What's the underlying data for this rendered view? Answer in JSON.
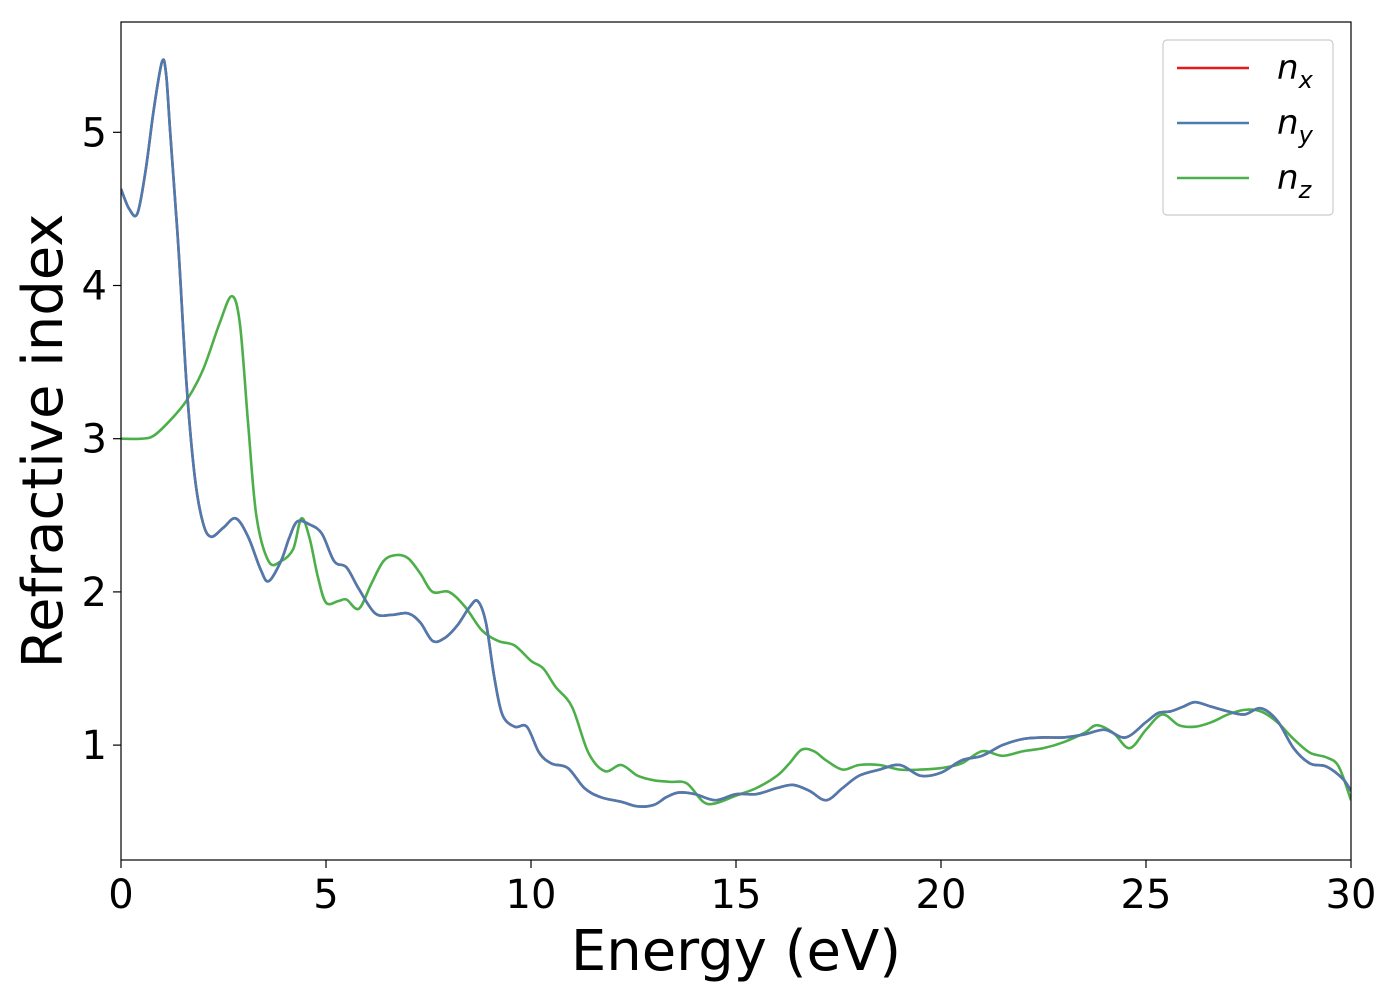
{
  "chart_data": {
    "type": "line",
    "xlabel": "Energy (eV)",
    "ylabel": "Refractive index",
    "xlim": [
      0,
      30
    ],
    "ylim": [
      0.25,
      5.72
    ],
    "xticks": [
      0,
      5,
      10,
      15,
      20,
      25,
      30
    ],
    "yticks": [
      1,
      2,
      3,
      4,
      5
    ],
    "grid": false,
    "legend_position": "top-right",
    "series": [
      {
        "name": "n_x",
        "label_base": "n",
        "label_sub": "x",
        "color": "#e41a1c",
        "x": [
          0,
          0.2,
          0.4,
          0.6,
          0.8,
          1.0,
          1.1,
          1.2,
          1.4,
          1.6,
          1.8,
          2.0,
          2.2,
          2.5,
          2.8,
          3.1,
          3.4,
          3.6,
          3.9,
          4.1,
          4.3,
          4.6,
          4.9,
          5.2,
          5.5,
          5.8,
          6.2,
          6.6,
          7.0,
          7.3,
          7.6,
          7.9,
          8.2,
          8.5,
          8.7,
          8.9,
          9.1,
          9.3,
          9.6,
          9.9,
          10.2,
          10.5,
          10.9,
          11.3,
          11.7,
          12.2,
          12.6,
          13.0,
          13.3,
          13.6,
          14.0,
          14.5,
          15.0,
          15.5,
          16.0,
          16.4,
          16.8,
          17.2,
          17.6,
          18.0,
          18.5,
          19.0,
          19.5,
          20.0,
          20.5,
          21.0,
          21.5,
          22.0,
          22.5,
          23.0,
          23.5,
          24.0,
          24.5,
          25.0,
          25.3,
          25.6,
          25.9,
          26.2,
          26.6,
          27.0,
          27.4,
          27.8,
          28.2,
          28.6,
          29.0,
          29.4,
          29.8,
          30.0
        ],
        "y": [
          4.63,
          4.5,
          4.47,
          4.75,
          5.15,
          5.46,
          5.38,
          5.0,
          4.25,
          3.35,
          2.75,
          2.45,
          2.36,
          2.42,
          2.48,
          2.36,
          2.15,
          2.07,
          2.2,
          2.35,
          2.46,
          2.44,
          2.38,
          2.2,
          2.16,
          2.02,
          1.86,
          1.85,
          1.86,
          1.8,
          1.68,
          1.7,
          1.78,
          1.9,
          1.94,
          1.8,
          1.45,
          1.2,
          1.12,
          1.12,
          0.95,
          0.88,
          0.85,
          0.72,
          0.66,
          0.63,
          0.6,
          0.61,
          0.66,
          0.69,
          0.68,
          0.64,
          0.68,
          0.68,
          0.72,
          0.74,
          0.7,
          0.64,
          0.72,
          0.8,
          0.84,
          0.87,
          0.8,
          0.82,
          0.9,
          0.93,
          1.0,
          1.04,
          1.05,
          1.05,
          1.07,
          1.1,
          1.05,
          1.15,
          1.21,
          1.22,
          1.25,
          1.28,
          1.25,
          1.22,
          1.2,
          1.24,
          1.16,
          0.98,
          0.88,
          0.86,
          0.78,
          0.7
        ]
      },
      {
        "name": "n_y",
        "label_base": "n",
        "label_sub": "y",
        "color": "#4c7bb0",
        "x": [
          0,
          0.2,
          0.4,
          0.6,
          0.8,
          1.0,
          1.1,
          1.2,
          1.4,
          1.6,
          1.8,
          2.0,
          2.2,
          2.5,
          2.8,
          3.1,
          3.4,
          3.6,
          3.9,
          4.1,
          4.3,
          4.6,
          4.9,
          5.2,
          5.5,
          5.8,
          6.2,
          6.6,
          7.0,
          7.3,
          7.6,
          7.9,
          8.2,
          8.5,
          8.7,
          8.9,
          9.1,
          9.3,
          9.6,
          9.9,
          10.2,
          10.5,
          10.9,
          11.3,
          11.7,
          12.2,
          12.6,
          13.0,
          13.3,
          13.6,
          14.0,
          14.5,
          15.0,
          15.5,
          16.0,
          16.4,
          16.8,
          17.2,
          17.6,
          18.0,
          18.5,
          19.0,
          19.5,
          20.0,
          20.5,
          21.0,
          21.5,
          22.0,
          22.5,
          23.0,
          23.5,
          24.0,
          24.5,
          25.0,
          25.3,
          25.6,
          25.9,
          26.2,
          26.6,
          27.0,
          27.4,
          27.8,
          28.2,
          28.6,
          29.0,
          29.4,
          29.8,
          30.0
        ],
        "y": [
          4.63,
          4.5,
          4.47,
          4.75,
          5.15,
          5.46,
          5.38,
          5.0,
          4.25,
          3.35,
          2.75,
          2.45,
          2.36,
          2.42,
          2.48,
          2.36,
          2.15,
          2.07,
          2.2,
          2.35,
          2.46,
          2.44,
          2.38,
          2.2,
          2.16,
          2.02,
          1.86,
          1.85,
          1.86,
          1.8,
          1.68,
          1.7,
          1.78,
          1.9,
          1.94,
          1.8,
          1.45,
          1.2,
          1.12,
          1.12,
          0.95,
          0.88,
          0.85,
          0.72,
          0.66,
          0.63,
          0.6,
          0.61,
          0.66,
          0.69,
          0.68,
          0.64,
          0.68,
          0.68,
          0.72,
          0.74,
          0.7,
          0.64,
          0.72,
          0.8,
          0.84,
          0.87,
          0.8,
          0.82,
          0.9,
          0.93,
          1.0,
          1.04,
          1.05,
          1.05,
          1.07,
          1.1,
          1.05,
          1.15,
          1.21,
          1.22,
          1.25,
          1.28,
          1.25,
          1.22,
          1.2,
          1.24,
          1.16,
          0.98,
          0.88,
          0.86,
          0.78,
          0.7
        ]
      },
      {
        "name": "n_z",
        "label_base": "n",
        "label_sub": "z",
        "color": "#4daf4a",
        "x": [
          0,
          0.5,
          0.8,
          1.2,
          1.6,
          2.0,
          2.4,
          2.7,
          2.9,
          3.1,
          3.3,
          3.6,
          3.9,
          4.2,
          4.4,
          4.6,
          4.8,
          5.0,
          5.3,
          5.5,
          5.8,
          6.1,
          6.4,
          6.7,
          7.0,
          7.3,
          7.6,
          8.0,
          8.4,
          8.8,
          9.2,
          9.6,
          10.0,
          10.3,
          10.6,
          11.0,
          11.4,
          11.8,
          12.2,
          12.6,
          13.0,
          13.4,
          13.8,
          14.2,
          14.5,
          15.0,
          15.5,
          16.0,
          16.3,
          16.6,
          16.9,
          17.2,
          17.6,
          18.0,
          18.5,
          19.0,
          19.5,
          20.0,
          20.5,
          21.0,
          21.5,
          22.0,
          22.5,
          23.0,
          23.5,
          23.8,
          24.2,
          24.6,
          25.0,
          25.4,
          25.8,
          26.2,
          26.6,
          27.0,
          27.4,
          27.8,
          28.2,
          28.6,
          29.0,
          29.4,
          29.7,
          30.0
        ],
        "y": [
          3.0,
          3.0,
          3.02,
          3.12,
          3.25,
          3.45,
          3.75,
          3.93,
          3.75,
          3.1,
          2.5,
          2.2,
          2.2,
          2.28,
          2.48,
          2.35,
          2.1,
          1.93,
          1.94,
          1.95,
          1.89,
          2.05,
          2.2,
          2.24,
          2.22,
          2.12,
          2.0,
          2.0,
          1.9,
          1.75,
          1.68,
          1.65,
          1.55,
          1.5,
          1.38,
          1.25,
          0.95,
          0.83,
          0.87,
          0.8,
          0.77,
          0.76,
          0.75,
          0.63,
          0.62,
          0.67,
          0.72,
          0.8,
          0.88,
          0.97,
          0.96,
          0.9,
          0.84,
          0.87,
          0.87,
          0.84,
          0.84,
          0.85,
          0.88,
          0.96,
          0.93,
          0.96,
          0.98,
          1.02,
          1.08,
          1.13,
          1.08,
          0.98,
          1.1,
          1.2,
          1.13,
          1.12,
          1.15,
          1.2,
          1.23,
          1.22,
          1.15,
          1.04,
          0.95,
          0.92,
          0.86,
          0.64
        ]
      }
    ]
  }
}
